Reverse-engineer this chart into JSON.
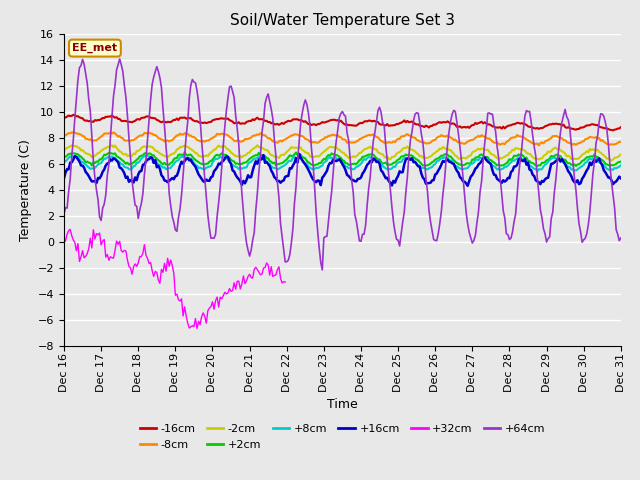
{
  "title": "Soil/Water Temperature Set 3",
  "xlabel": "Time",
  "ylabel": "Temperature (C)",
  "ylim": [
    -8,
    16
  ],
  "xlim": [
    0,
    360
  ],
  "yticks": [
    -8,
    -6,
    -4,
    -2,
    0,
    2,
    4,
    6,
    8,
    10,
    12,
    14,
    16
  ],
  "xtick_labels": [
    "Dec 16",
    "Dec 17",
    "Dec 18",
    "Dec 19",
    "Dec 20",
    "Dec 21",
    "Dec 22",
    "Dec 23",
    "Dec 24",
    "Dec 25",
    "Dec 26",
    "Dec 27",
    "Dec 28",
    "Dec 29",
    "Dec 30",
    "Dec 31"
  ],
  "xtick_positions": [
    0,
    24,
    48,
    72,
    96,
    120,
    144,
    168,
    192,
    216,
    240,
    264,
    288,
    312,
    336,
    360
  ],
  "series": {
    "-16cm": {
      "color": "#cc0000",
      "lw": 1.5
    },
    "-8cm": {
      "color": "#ff8800",
      "lw": 1.5
    },
    "-2cm": {
      "color": "#cccc00",
      "lw": 1.5
    },
    "+2cm": {
      "color": "#00cc00",
      "lw": 1.5
    },
    "+8cm": {
      "color": "#00cccc",
      "lw": 1.5
    },
    "+16cm": {
      "color": "#0000cc",
      "lw": 1.8
    },
    "+32cm": {
      "color": "#ff00ff",
      "lw": 1.0
    },
    "+64cm": {
      "color": "#9933cc",
      "lw": 1.2
    }
  },
  "background_color": "#e8e8e8",
  "plot_bg_color": "#e8e8e8",
  "grid_color": "#ffffff",
  "ee_met_label": "EE_met",
  "ee_met_bg": "#ffffcc",
  "ee_met_border": "#cc8800",
  "figsize": [
    6.4,
    4.8
  ],
  "dpi": 100
}
